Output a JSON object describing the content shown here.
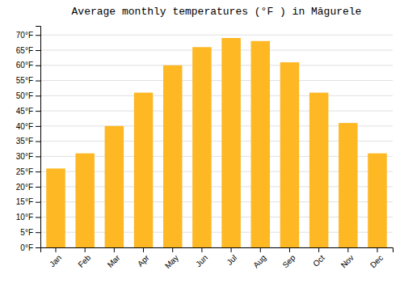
{
  "chart_data": {
    "type": "bar",
    "title": "Average monthly temperatures (°F ) in Măgurele",
    "categories": [
      "Jan",
      "Feb",
      "Mar",
      "Apr",
      "May",
      "Jun",
      "Jul",
      "Aug",
      "Sep",
      "Oct",
      "Nov",
      "Dec"
    ],
    "values": [
      26,
      31,
      40,
      51,
      60,
      66,
      69,
      68,
      61,
      51,
      41,
      31
    ],
    "color": "#FDB823",
    "ylim": [
      0,
      73
    ],
    "yticks": [
      {
        "value": 0,
        "label": "0°F"
      },
      {
        "value": 5,
        "label": "5°F"
      },
      {
        "value": 10,
        "label": "10°F"
      },
      {
        "value": 15,
        "label": "15°F"
      },
      {
        "value": 20,
        "label": "20°F"
      },
      {
        "value": 25,
        "label": "25°F"
      },
      {
        "value": 30,
        "label": "30°F"
      },
      {
        "value": 35,
        "label": "35°F"
      },
      {
        "value": 40,
        "label": "40°F"
      },
      {
        "value": 45,
        "label": "45°F"
      },
      {
        "value": 50,
        "label": "50°F"
      },
      {
        "value": 55,
        "label": "55°F"
      },
      {
        "value": 60,
        "label": "60°F"
      },
      {
        "value": 65,
        "label": "65°F"
      },
      {
        "value": 70,
        "label": "70°F"
      }
    ],
    "grid": true
  }
}
